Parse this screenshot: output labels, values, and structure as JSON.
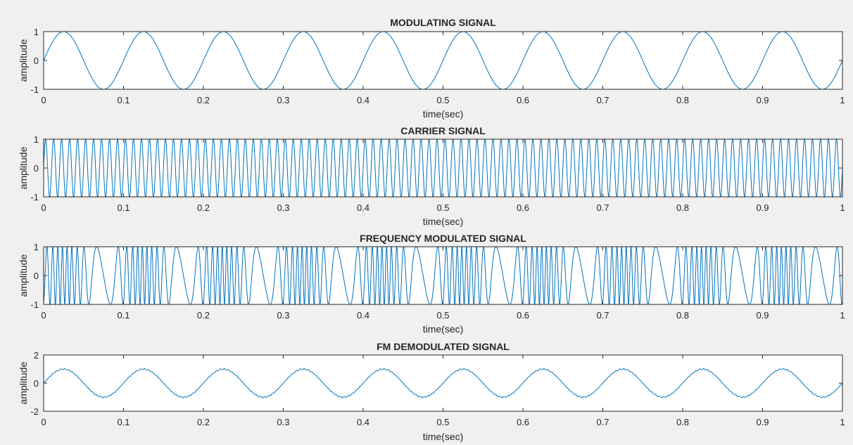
{
  "figure": {
    "background": "#f0f0f0",
    "axes_background": "#ffffff",
    "axis_color": "#262626",
    "line_color": "#0072bd"
  },
  "chart_data": [
    {
      "type": "line",
      "title": "MODULATING SIGNAL",
      "xlabel": "time(sec)",
      "ylabel": "amplitude",
      "xlim": [
        0,
        1
      ],
      "ylim": [
        -1,
        1
      ],
      "xticks": [
        "0",
        "0.1",
        "0.2",
        "0.3",
        "0.4",
        "0.5",
        "0.6",
        "0.7",
        "0.8",
        "0.9",
        "1"
      ],
      "yticks": [
        "1",
        "0",
        "-1"
      ],
      "grid": false,
      "series": [
        {
          "function": "sine",
          "amplitude": 1,
          "frequency_hz": 10,
          "x_range": [
            0,
            1
          ]
        }
      ]
    },
    {
      "type": "line",
      "title": "CARRIER SIGNAL",
      "xlabel": "time(sec)",
      "ylabel": "amplitude",
      "xlim": [
        0,
        1
      ],
      "ylim": [
        -1,
        1
      ],
      "xticks": [
        "0",
        "0.1",
        "0.2",
        "0.3",
        "0.4",
        "0.5",
        "0.6",
        "0.7",
        "0.8",
        "0.9",
        "1"
      ],
      "yticks": [
        "1",
        "0",
        "-1"
      ],
      "grid": false,
      "series": [
        {
          "function": "sine",
          "amplitude": 1,
          "frequency_hz": 100,
          "x_range": [
            0,
            1
          ]
        }
      ]
    },
    {
      "type": "line",
      "title": "FREQUENCY MODULATED SIGNAL",
      "xlabel": "time(sec)",
      "ylabel": "amplitude",
      "xlim": [
        0,
        1
      ],
      "ylim": [
        -1,
        1
      ],
      "xticks": [
        "0",
        "0.1",
        "0.2",
        "0.3",
        "0.4",
        "0.5",
        "0.6",
        "0.7",
        "0.8",
        "0.9",
        "1"
      ],
      "yticks": [
        "1",
        "0",
        "-1"
      ],
      "grid": false,
      "series": [
        {
          "function": "fm_sine",
          "amplitude": 1,
          "carrier_hz": 100,
          "modulating_hz": 10,
          "deviation_hz": 75,
          "x_range": [
            0,
            1
          ]
        }
      ]
    },
    {
      "type": "line",
      "title": "FM DEMODULATED SIGNAL",
      "xlabel": "time(sec)",
      "ylabel": "amplitude",
      "xlim": [
        0,
        1
      ],
      "ylim": [
        -2,
        2
      ],
      "xticks": [
        "0",
        "0.1",
        "0.2",
        "0.3",
        "0.4",
        "0.5",
        "0.6",
        "0.7",
        "0.8",
        "0.9",
        "1"
      ],
      "yticks": [
        "2",
        "0",
        "-2"
      ],
      "grid": false,
      "series": [
        {
          "function": "sine_with_ripple",
          "amplitude": 1,
          "frequency_hz": 10,
          "ripple_amplitude": 0.04,
          "ripple_hz": 200,
          "x_range": [
            0,
            1
          ]
        }
      ]
    }
  ]
}
